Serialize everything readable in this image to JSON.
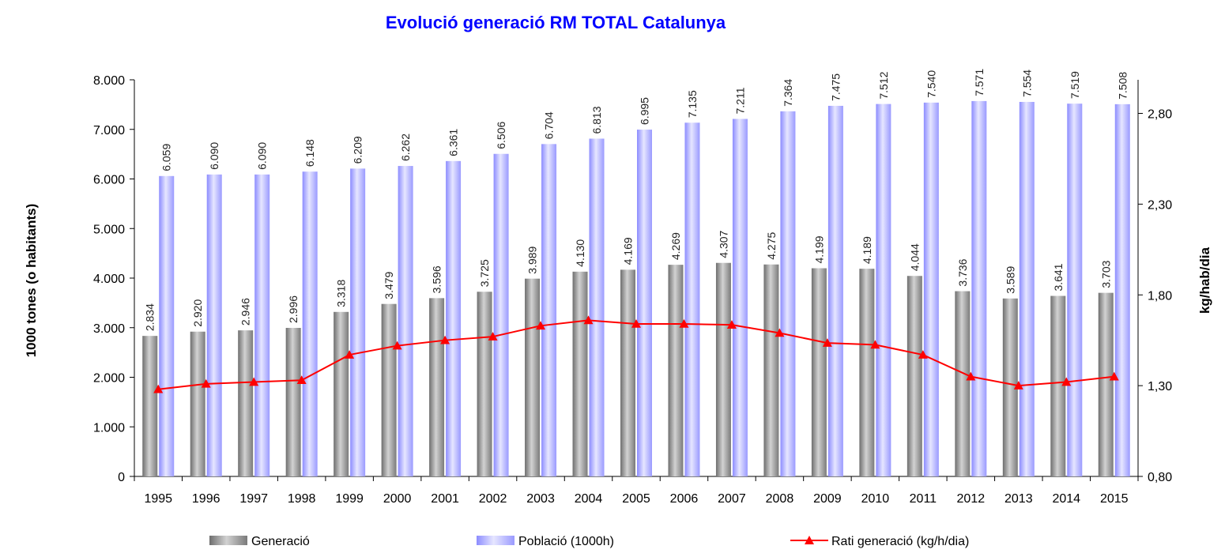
{
  "chart_data": {
    "type": "bar",
    "title": "Evolució generació RM TOTAL Catalunya",
    "ylabel": "1000 tones (o habitants)",
    "y2label": "kg/hab/dia",
    "ylim": [
      0,
      8000
    ],
    "y2lim": [
      0.8,
      2.8
    ],
    "yticks": [
      "0",
      "1.000",
      "2.000",
      "3.000",
      "4.000",
      "5.000",
      "6.000",
      "7.000",
      "8.000"
    ],
    "y2ticks": [
      "0,80",
      "1,30",
      "1,80",
      "2,30",
      "2,80"
    ],
    "categories": [
      "1995",
      "1996",
      "1997",
      "1998",
      "1999",
      "2000",
      "2001",
      "2002",
      "2003",
      "2004",
      "2005",
      "2006",
      "2007",
      "2008",
      "2009",
      "2010",
      "2011",
      "2012",
      "2013",
      "2014",
      "2015"
    ],
    "series": [
      {
        "name": "Generació",
        "type": "bar",
        "color": "#9e9e9e",
        "values": [
          2834,
          2920,
          2946,
          2996,
          3318,
          3479,
          3596,
          3725,
          3989,
          4130,
          4169,
          4269,
          4307,
          4275,
          4199,
          4189,
          4044,
          3736,
          3589,
          3641,
          3703
        ],
        "labels": [
          "2.834",
          "2.920",
          "2.946",
          "2.996",
          "3.318",
          "3.479",
          "3.596",
          "3.725",
          "3.989",
          "4.130",
          "4.169",
          "4.269",
          "4.307",
          "4.275",
          "4.199",
          "4.189",
          "4.044",
          "3.736",
          "3.589",
          "3.641",
          "3.703"
        ]
      },
      {
        "name": "Població (1000h)",
        "type": "bar",
        "color": "#b0b0ff",
        "values": [
          6059,
          6090,
          6090,
          6148,
          6209,
          6262,
          6361,
          6506,
          6704,
          6813,
          6995,
          7135,
          7211,
          7364,
          7475,
          7512,
          7540,
          7571,
          7554,
          7519,
          7508
        ],
        "labels": [
          "6.059",
          "6.090",
          "6.090",
          "6.148",
          "6.209",
          "6.262",
          "6.361",
          "6.506",
          "6.704",
          "6.813",
          "6.995",
          "7.135",
          "7.211",
          "7.364",
          "7.475",
          "7.512",
          "7.540",
          "7.571",
          "7.554",
          "7.519",
          "7.508"
        ]
      },
      {
        "name": "Rati generació (kg/h/dia)",
        "type": "line",
        "axis": "right",
        "color": "#ff0000",
        "marker": "triangle",
        "values": [
          1.28,
          1.31,
          1.32,
          1.33,
          1.47,
          1.52,
          1.55,
          1.57,
          1.63,
          1.66,
          1.64,
          1.64,
          1.635,
          1.59,
          1.535,
          1.525,
          1.47,
          1.35,
          1.3,
          1.32,
          1.35
        ]
      }
    ],
    "legend_position": "bottom"
  }
}
